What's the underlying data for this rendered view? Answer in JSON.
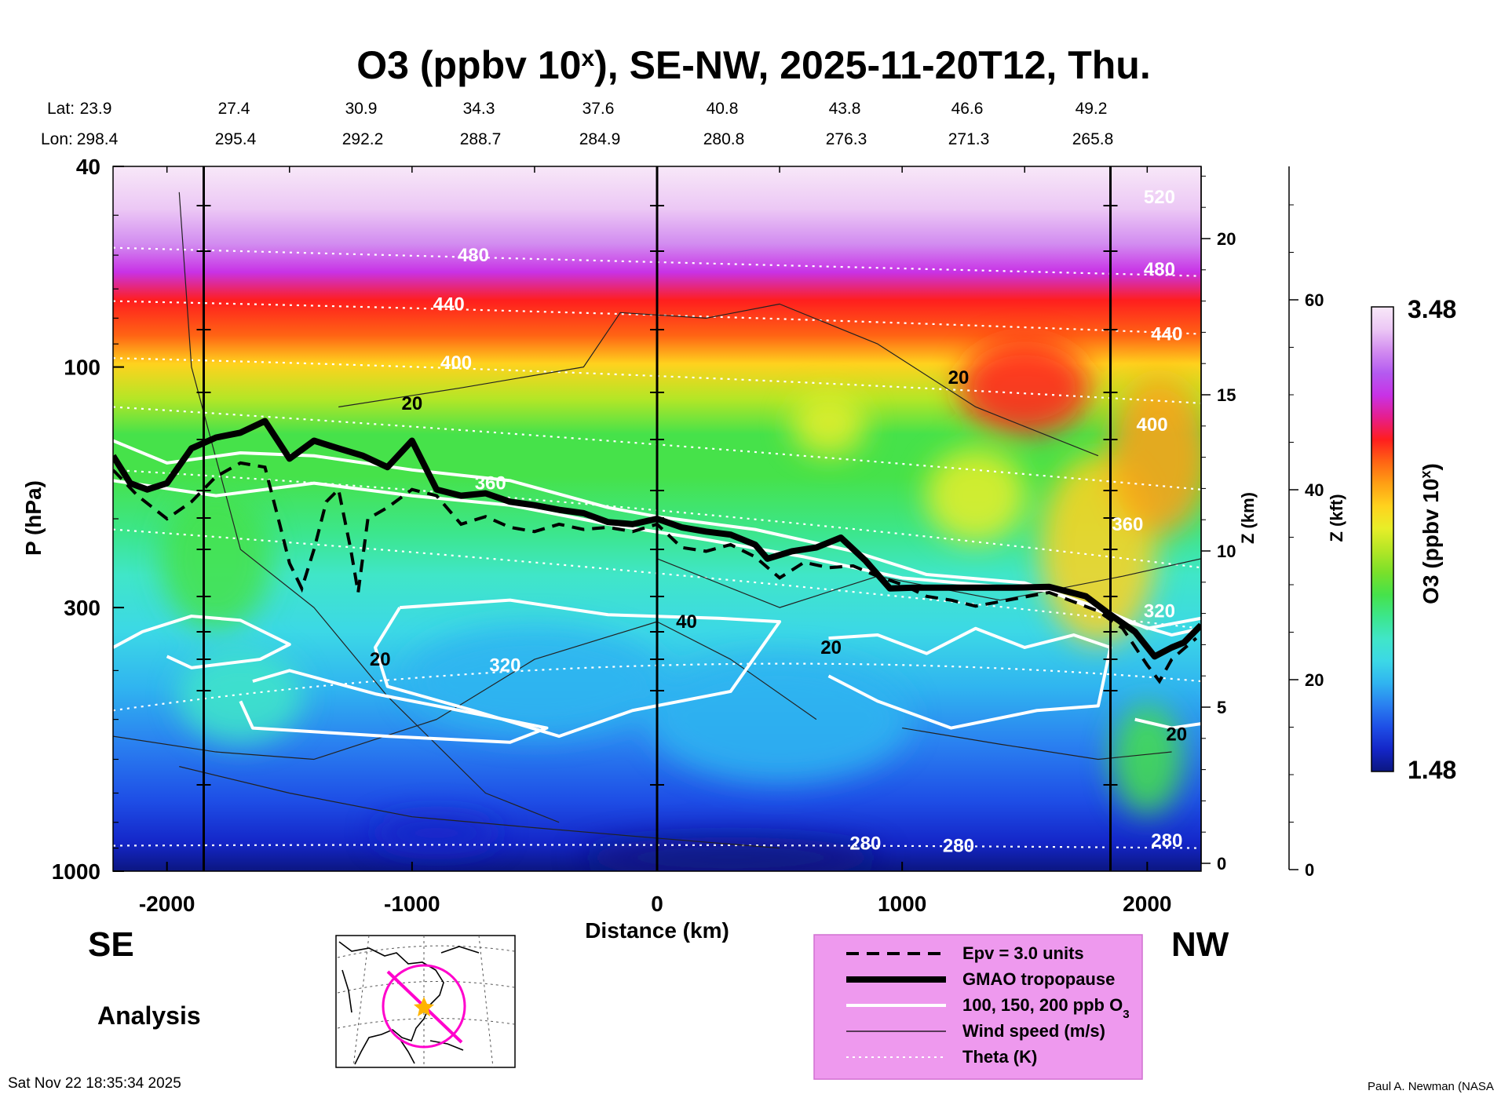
{
  "chart_data": {
    "type": "heatmap",
    "title_main": "O3 (ppbv 10",
    "title_sup": "x",
    "title_rest": "), SE-NW, 2025-11-20T12, Thu.",
    "lat_label": "Lat:",
    "lon_label": "Lon:",
    "lat_values": [
      "23.9",
      "27.4",
      "30.9",
      "34.3",
      "37.6",
      "40.8",
      "43.8",
      "46.6",
      "49.2"
    ],
    "lon_values": [
      "298.4",
      "295.4",
      "292.2",
      "288.7",
      "284.9",
      "280.8",
      "276.3",
      "271.3",
      "265.8"
    ],
    "xlabel": "Distance (km)",
    "ylabel": "P (hPa)",
    "z_km_label": "Z (km)",
    "z_kft_label": "Z (kft)",
    "colorbar_label_main": "O3 (ppbv 10",
    "colorbar_label_sup": "x",
    "colorbar_label_end": ")",
    "xlim": [
      -2220,
      2220
    ],
    "ylim": [
      1000,
      40
    ],
    "y_scale": "log",
    "x_ticks": [
      -2000,
      -1000,
      0,
      1000,
      2000
    ],
    "x_tick_labels": [
      "-2000",
      "-1000",
      "0",
      "1000",
      "2000"
    ],
    "p_ticks": [
      40,
      100,
      300,
      1000
    ],
    "p_tick_labels": [
      "40",
      "100",
      "300",
      "1000"
    ],
    "z_km_ticks": [
      0,
      5,
      10,
      15,
      20
    ],
    "z_km_tick_labels": [
      "0",
      "5",
      "10",
      "15",
      "20"
    ],
    "z_kft_ticks": [
      0,
      20,
      40,
      60
    ],
    "z_kft_tick_labels": [
      "0",
      "20",
      "40",
      "60"
    ],
    "colorbar_range": [
      1.48,
      3.48
    ],
    "colorbar_max_label": "3.48",
    "colorbar_min_label": "1.48",
    "colorbar_colors": [
      "#0b1680",
      "#1426c8",
      "#1e4ee6",
      "#2a80f0",
      "#30b4f0",
      "#3cd8e6",
      "#40e6c8",
      "#3ce68c",
      "#46e24a",
      "#7ae02a",
      "#b4e626",
      "#e8ee28",
      "#ffd21e",
      "#ffa014",
      "#ff6414",
      "#ff1e1e",
      "#e61e8c",
      "#c832e6",
      "#b45af0",
      "#d28cf0",
      "#ecc8f5",
      "#f8e8f8"
    ],
    "vertical_markers_km": [
      -1850,
      0,
      1850
    ],
    "left_direction": "SE",
    "right_direction": "NW",
    "analysis_label": "Analysis",
    "timestamp": "Sat Nov 22 18:35:34 2025",
    "credit": "Paul A. Newman (NASA",
    "tropopause_pressure": [
      [
        -2220,
        150
      ],
      [
        -2150,
        170
      ],
      [
        -2080,
        175
      ],
      [
        -2000,
        170
      ],
      [
        -1900,
        145
      ],
      [
        -1800,
        138
      ],
      [
        -1700,
        135
      ],
      [
        -1600,
        128
      ],
      [
        -1500,
        152
      ],
      [
        -1400,
        140
      ],
      [
        -1300,
        145
      ],
      [
        -1200,
        150
      ],
      [
        -1100,
        158
      ],
      [
        -1000,
        140
      ],
      [
        -900,
        175
      ],
      [
        -800,
        180
      ],
      [
        -700,
        178
      ],
      [
        -600,
        185
      ],
      [
        -500,
        188
      ],
      [
        -400,
        192
      ],
      [
        -300,
        195
      ],
      [
        -200,
        203
      ],
      [
        -100,
        205
      ],
      [
        0,
        200
      ],
      [
        100,
        208
      ],
      [
        200,
        212
      ],
      [
        300,
        215
      ],
      [
        400,
        225
      ],
      [
        450,
        240
      ],
      [
        550,
        232
      ],
      [
        650,
        228
      ],
      [
        750,
        218
      ],
      [
        850,
        242
      ],
      [
        950,
        275
      ],
      [
        1050,
        274
      ],
      [
        1150,
        274
      ],
      [
        1300,
        274
      ],
      [
        1450,
        274
      ],
      [
        1600,
        273
      ],
      [
        1750,
        285
      ],
      [
        1850,
        310
      ],
      [
        1950,
        335
      ],
      [
        2030,
        375
      ],
      [
        2100,
        360
      ],
      [
        2150,
        352
      ],
      [
        2220,
        325
      ]
    ],
    "epv_pressure": [
      [
        -2220,
        160
      ],
      [
        -2120,
        180
      ],
      [
        -2000,
        200
      ],
      [
        -1900,
        185
      ],
      [
        -1800,
        165
      ],
      [
        -1700,
        155
      ],
      [
        -1600,
        158
      ],
      [
        -1540,
        205
      ],
      [
        -1500,
        245
      ],
      [
        -1450,
        275
      ],
      [
        -1400,
        230
      ],
      [
        -1350,
        185
      ],
      [
        -1300,
        175
      ],
      [
        -1250,
        230
      ],
      [
        -1220,
        280
      ],
      [
        -1180,
        200
      ],
      [
        -1100,
        190
      ],
      [
        -1000,
        175
      ],
      [
        -900,
        180
      ],
      [
        -800,
        205
      ],
      [
        -700,
        198
      ],
      [
        -600,
        208
      ],
      [
        -500,
        212
      ],
      [
        -400,
        205
      ],
      [
        -300,
        210
      ],
      [
        -200,
        208
      ],
      [
        -100,
        212
      ],
      [
        0,
        205
      ],
      [
        100,
        228
      ],
      [
        200,
        232
      ],
      [
        300,
        225
      ],
      [
        400,
        238
      ],
      [
        500,
        262
      ],
      [
        600,
        244
      ],
      [
        700,
        250
      ],
      [
        800,
        248
      ],
      [
        900,
        260
      ],
      [
        1000,
        270
      ],
      [
        1100,
        285
      ],
      [
        1200,
        290
      ],
      [
        1300,
        298
      ],
      [
        1600,
        280
      ],
      [
        1800,
        305
      ],
      [
        1900,
        330
      ],
      [
        2000,
        390
      ],
      [
        2050,
        420
      ],
      [
        2100,
        380
      ],
      [
        2150,
        362
      ],
      [
        2200,
        345
      ]
    ],
    "contour_labels": [
      {
        "text": "480",
        "x": -750,
        "p": 60,
        "color": "white"
      },
      {
        "text": "440",
        "x": -850,
        "p": 75,
        "color": "white"
      },
      {
        "text": "400",
        "x": -820,
        "p": 98,
        "color": "white"
      },
      {
        "text": "360",
        "x": -680,
        "p": 170,
        "color": "white"
      },
      {
        "text": "320",
        "x": -620,
        "p": 390,
        "color": "white"
      },
      {
        "text": "280",
        "x": 850,
        "p": 880,
        "color": "white"
      },
      {
        "text": "280",
        "x": 1230,
        "p": 890,
        "color": "white"
      },
      {
        "text": "280",
        "x": 2080,
        "p": 870,
        "color": "white"
      },
      {
        "text": "520",
        "x": 2050,
        "p": 46,
        "color": "white"
      },
      {
        "text": "480",
        "x": 2050,
        "p": 64,
        "color": "white"
      },
      {
        "text": "440",
        "x": 2080,
        "p": 86,
        "color": "white"
      },
      {
        "text": "400",
        "x": 2020,
        "p": 130,
        "color": "white"
      },
      {
        "text": "360",
        "x": 1920,
        "p": 205,
        "color": "white"
      },
      {
        "text": "320",
        "x": 2050,
        "p": 305,
        "color": "white"
      },
      {
        "text": "20",
        "x": -1000,
        "p": 118,
        "color": "black"
      },
      {
        "text": "20",
        "x": 1230,
        "p": 105,
        "color": "black"
      },
      {
        "text": "40",
        "x": 120,
        "p": 320,
        "color": "black"
      },
      {
        "text": "20",
        "x": -1130,
        "p": 380,
        "color": "black"
      },
      {
        "text": "20",
        "x": 710,
        "p": 360,
        "color": "black"
      },
      {
        "text": "20",
        "x": 2120,
        "p": 535,
        "color": "black"
      }
    ],
    "legend": [
      {
        "style": "dashed-black",
        "label": "Epv = 3.0 units"
      },
      {
        "style": "thick-black",
        "label": "GMAO tropopause"
      },
      {
        "style": "white",
        "label_main": "100, 150, 200 ppb O",
        "label_sub": "3"
      },
      {
        "style": "thin-black",
        "label": "Wind speed (m/s)"
      },
      {
        "style": "dotted-white",
        "label": "Theta (K)"
      }
    ]
  }
}
